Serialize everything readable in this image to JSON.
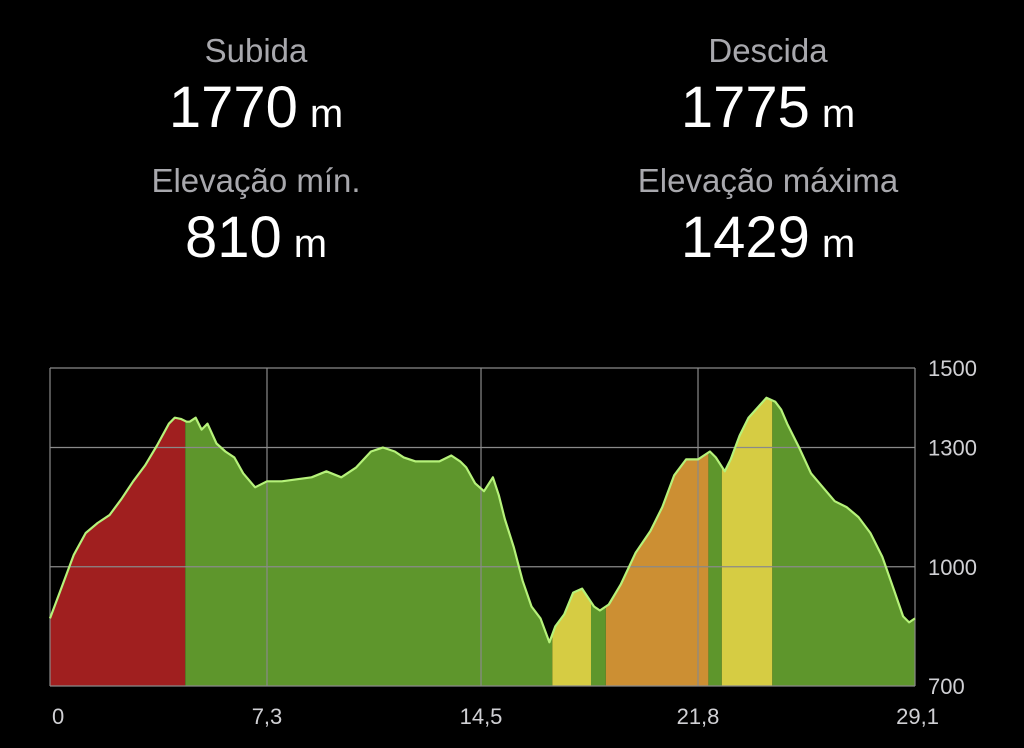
{
  "stats": {
    "ascent": {
      "label": "Subida",
      "value": "1770",
      "unit": "m"
    },
    "descent": {
      "label": "Descida",
      "value": "1775",
      "unit": "m"
    },
    "min_elev": {
      "label": "Elevação mín.",
      "value": "810",
      "unit": "m"
    },
    "max_elev": {
      "label": "Elevação máxima",
      "value": "1429",
      "unit": "m"
    }
  },
  "colors": {
    "background": "#000000",
    "grid": "#8a8a8a",
    "profile_line": "#b6f27a",
    "segment_green": "#5e962c",
    "segment_red": "#a01f1f",
    "segment_orange": "#cc8f33",
    "segment_yellow": "#d6cc43"
  },
  "chart_data": {
    "type": "area",
    "title": "",
    "xlabel": "",
    "ylabel": "",
    "xlim": [
      0,
      29.1
    ],
    "ylim": [
      700,
      1500
    ],
    "x_ticks": [
      0,
      7.3,
      14.5,
      21.8,
      29.1
    ],
    "x_tick_labels": [
      "0",
      "7,3",
      "14,5",
      "21,8",
      "29,1"
    ],
    "y_ticks": [
      700,
      1000,
      1300,
      1500
    ],
    "y_tick_labels": [
      "700",
      "1000",
      "1300",
      "1500"
    ],
    "grid": true,
    "y_axis_side": "right",
    "x": [
      0,
      0.4,
      0.8,
      1.2,
      1.6,
      2.0,
      2.4,
      2.8,
      3.2,
      3.6,
      4.0,
      4.2,
      4.4,
      4.6,
      4.7,
      4.9,
      5.1,
      5.3,
      5.6,
      5.9,
      6.2,
      6.5,
      6.9,
      7.3,
      7.8,
      8.3,
      8.8,
      9.3,
      9.8,
      10.3,
      10.8,
      11.2,
      11.6,
      11.9,
      12.3,
      12.7,
      13.1,
      13.5,
      13.8,
      14.0,
      14.3,
      14.6,
      14.9,
      15.1,
      15.3,
      15.6,
      15.9,
      16.2,
      16.5,
      16.8,
      17.0,
      17.3,
      17.6,
      17.9,
      18.3,
      18.5,
      18.8,
      19.2,
      19.7,
      20.2,
      20.6,
      21.0,
      21.4,
      21.8,
      22.2,
      22.4,
      22.7,
      22.9,
      23.2,
      23.5,
      23.8,
      24.1,
      24.4,
      24.6,
      24.8,
      25.2,
      25.6,
      26.0,
      26.4,
      26.8,
      27.2,
      27.6,
      28.0,
      28.4,
      28.7,
      28.9,
      29.1
    ],
    "y": [
      870,
      950,
      1030,
      1085,
      1110,
      1130,
      1170,
      1215,
      1255,
      1305,
      1360,
      1375,
      1372,
      1365,
      1365,
      1375,
      1345,
      1360,
      1310,
      1290,
      1275,
      1235,
      1200,
      1215,
      1215,
      1220,
      1225,
      1240,
      1225,
      1250,
      1290,
      1300,
      1290,
      1275,
      1265,
      1265,
      1265,
      1280,
      1265,
      1250,
      1210,
      1190,
      1225,
      1180,
      1120,
      1050,
      965,
      900,
      870,
      810,
      850,
      880,
      935,
      945,
      900,
      890,
      905,
      955,
      1035,
      1090,
      1150,
      1230,
      1270,
      1270,
      1290,
      1275,
      1240,
      1270,
      1330,
      1375,
      1400,
      1425,
      1415,
      1395,
      1360,
      1300,
      1235,
      1200,
      1165,
      1150,
      1125,
      1085,
      1025,
      940,
      875,
      860,
      870
    ],
    "segments": [
      {
        "x0": 0,
        "x1": 4.55,
        "color": "red"
      },
      {
        "x0": 4.55,
        "x1": 16.9,
        "color": "green"
      },
      {
        "x0": 16.9,
        "x1": 18.2,
        "color": "yellow"
      },
      {
        "x0": 18.2,
        "x1": 18.7,
        "color": "green"
      },
      {
        "x0": 18.7,
        "x1": 22.15,
        "color": "orange"
      },
      {
        "x0": 22.15,
        "x1": 22.6,
        "color": "green"
      },
      {
        "x0": 22.6,
        "x1": 24.3,
        "color": "yellow"
      },
      {
        "x0": 24.3,
        "x1": 29.1,
        "color": "green"
      }
    ]
  }
}
